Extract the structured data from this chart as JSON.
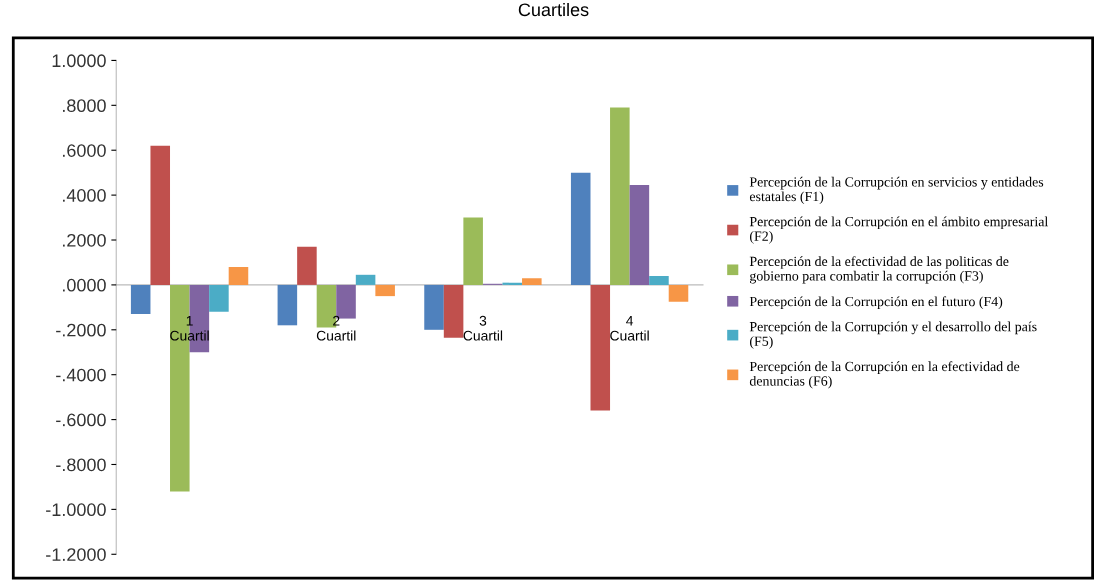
{
  "chart_data": {
    "type": "bar",
    "title": "Cuartiles",
    "categories": [
      "1\nCuartil",
      "2\nCuartil",
      "3\nCuartil",
      "4\nCuartil"
    ],
    "series": [
      {
        "name": "Percepción de la Corrupción en servicios y entidades estatales (F1)",
        "color": "#4f81bd",
        "values": [
          -0.13,
          -0.18,
          -0.2,
          0.5
        ]
      },
      {
        "name": "Percepción de la Corrupción en el ámbito empresarial (F2)",
        "color": "#c0504d",
        "values": [
          0.62,
          0.17,
          -0.235,
          -0.56
        ]
      },
      {
        "name": "Percepción de la efectividad de las politicas de gobierno para combatir la corrupción (F3)",
        "color": "#9bbb59",
        "values": [
          -0.92,
          -0.19,
          0.3,
          0.79
        ]
      },
      {
        "name": "Percepción de la Corrupción en el futuro (F4)",
        "color": "#8064a2",
        "values": [
          -0.3,
          -0.15,
          0.005,
          0.445
        ]
      },
      {
        "name": "Percepción de la Corrupción y el desarrollo del país (F5)",
        "color": "#4bacc6",
        "values": [
          -0.12,
          0.045,
          0.01,
          0.04
        ]
      },
      {
        "name": "Percepción de la Corrupción en la efectividad de denuncias (F6)",
        "color": "#f79646",
        "values": [
          0.08,
          -0.05,
          0.03,
          -0.075
        ]
      }
    ],
    "ylim": [
      -1.2,
      1.0
    ],
    "yticks": [
      {
        "value": -1.2,
        "label": "-1.2000"
      },
      {
        "value": -1.0,
        "label": "-1.0000"
      },
      {
        "value": -0.8,
        "label": "-.8000"
      },
      {
        "value": -0.6,
        "label": "-.6000"
      },
      {
        "value": -0.4,
        "label": "-.4000"
      },
      {
        "value": -0.2,
        "label": "-.2000"
      },
      {
        "value": 0,
        "label": ".0000"
      },
      {
        "value": 0.2,
        "label": ".2000"
      },
      {
        "value": 0.4,
        "label": ".4000"
      },
      {
        "value": 0.6,
        "label": ".6000"
      },
      {
        "value": 0.8,
        "label": ".8000"
      },
      {
        "value": 1.0,
        "label": "1.0000"
      }
    ],
    "grid": false,
    "legend": "right"
  }
}
